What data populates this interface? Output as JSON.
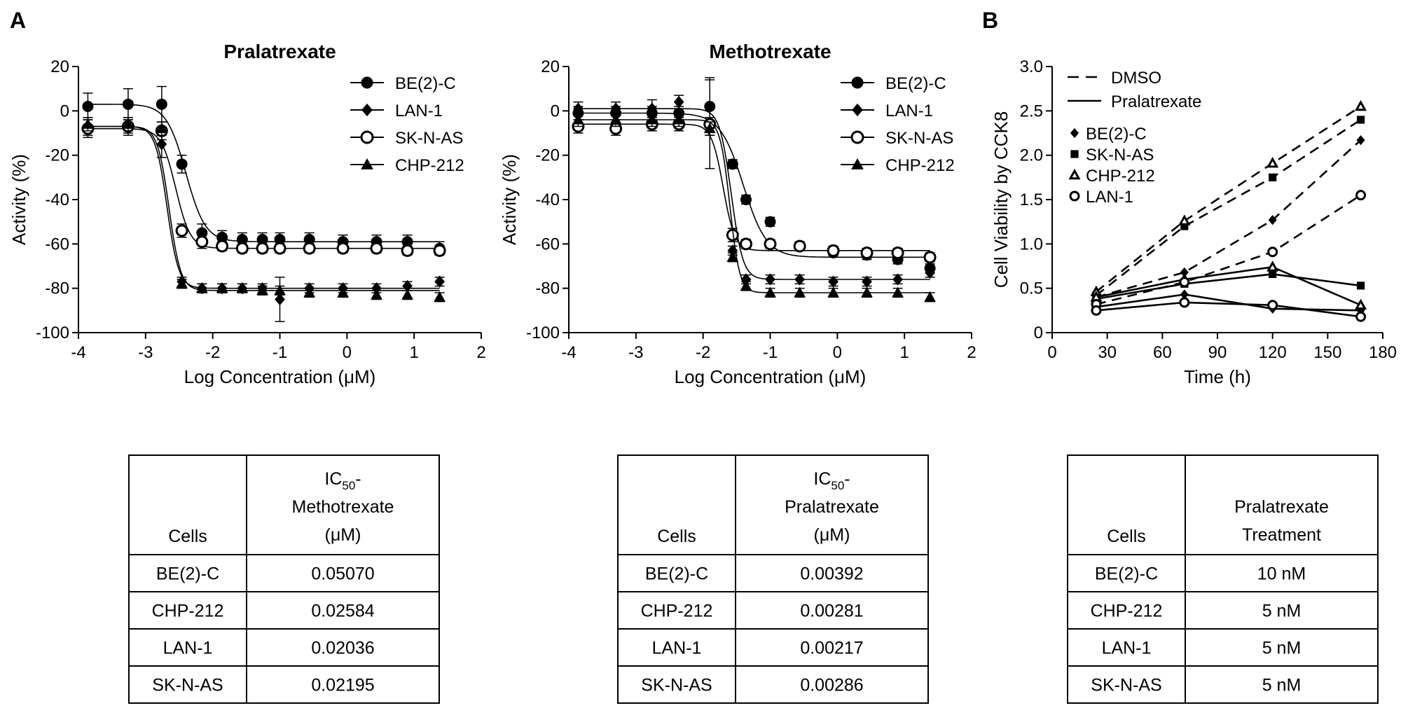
{
  "panels": {
    "a": "A",
    "b": "B"
  },
  "chart_data": [
    {
      "type": "scatter",
      "title": "Pralatrexate",
      "xlabel": "Log Concentration (μM)",
      "ylabel": "Activity (%)",
      "xlim": [
        -4,
        2
      ],
      "ylim": [
        -100,
        20
      ],
      "xticks": [
        -4,
        -3,
        -2,
        -1,
        0,
        1,
        2
      ],
      "yticks": [
        20,
        0,
        -20,
        -40,
        -60,
        -80,
        -100
      ],
      "tick_labels_x": [
        "-4",
        "-3",
        "-2",
        "-1",
        "0",
        "1",
        "2"
      ],
      "tick_labels_y": [
        "20",
        "0",
        "-20",
        "-40",
        "-60",
        "-80",
        "-100"
      ],
      "x": [
        -3.86,
        -3.26,
        -2.76,
        -2.46,
        -2.16,
        -1.86,
        -1.56,
        -1.26,
        -1.0,
        -0.56,
        -0.06,
        0.44,
        0.9,
        1.38
      ],
      "series": [
        {
          "name": "BE(2)-C",
          "marker": "filled-circle",
          "values": [
            2,
            3,
            3,
            -24,
            -55,
            -57,
            -58,
            -58,
            -58,
            -58,
            -59,
            -59,
            -59,
            -62
          ],
          "errors": [
            6,
            7,
            8,
            4,
            4,
            3,
            3,
            3,
            3,
            3,
            3,
            3,
            3,
            3
          ],
          "fit": {
            "top": 3,
            "bottom": -59,
            "logec50": -2.4,
            "hill": 3
          }
        },
        {
          "name": "LAN-1",
          "marker": "filled-diamond",
          "values": [
            -7,
            -7,
            -15,
            -77,
            -80,
            -80,
            -80,
            -80,
            -85,
            -80,
            -80,
            -80,
            -79,
            -77
          ],
          "errors": [
            4,
            4,
            6,
            2,
            2,
            2,
            2,
            2,
            10,
            2,
            2,
            2,
            2,
            2
          ],
          "fit": {
            "top": -7,
            "bottom": -80,
            "logec50": -2.68,
            "hill": 5
          }
        },
        {
          "name": "SK-N-AS",
          "marker": "open-circle",
          "values": [
            -8,
            -7,
            -9,
            -54,
            -59,
            -61,
            -62,
            -62,
            -62,
            -62,
            -62,
            -62,
            -63,
            -63
          ],
          "errors": [
            4,
            3,
            4,
            3,
            3,
            2,
            2,
            2,
            2,
            2,
            2,
            2,
            2,
            2
          ],
          "fit": {
            "top": -8,
            "bottom": -62,
            "logec50": -2.55,
            "hill": 4
          }
        },
        {
          "name": "CHP-212",
          "marker": "filled-triangle",
          "values": [
            -6,
            -6,
            -8,
            -78,
            -80,
            -80,
            -80,
            -81,
            -81,
            -82,
            -82,
            -83,
            -83,
            -84
          ],
          "errors": [
            3,
            3,
            3,
            2,
            2,
            2,
            2,
            2,
            2,
            2,
            2,
            2,
            2,
            2
          ],
          "fit": {
            "top": -7,
            "bottom": -81,
            "logec50": -2.65,
            "hill": 5
          }
        }
      ],
      "legend": "top-right"
    },
    {
      "type": "scatter",
      "title": "Methotrexate",
      "xlabel": "Log Concentration (μM)",
      "ylabel": "Activity (%)",
      "xlim": [
        -4,
        2
      ],
      "ylim": [
        -100,
        20
      ],
      "xticks": [
        -4,
        -3,
        -2,
        -1,
        0,
        1,
        2
      ],
      "yticks": [
        20,
        0,
        -20,
        -40,
        -60,
        -80,
        -100
      ],
      "tick_labels_x": [
        "-4",
        "-3",
        "-2",
        "-1",
        "0",
        "1",
        "2"
      ],
      "tick_labels_y": [
        "20",
        "0",
        "-20",
        "-40",
        "-60",
        "-80",
        "-100"
      ],
      "x": [
        -3.86,
        -3.3,
        -2.76,
        -2.36,
        -1.9,
        -1.56,
        -1.36,
        -1.0,
        -0.56,
        -0.06,
        0.44,
        0.9,
        1.38
      ],
      "series": [
        {
          "name": "BE(2)-C",
          "marker": "filled-circle",
          "values": [
            -1,
            -1,
            -1,
            -1,
            2,
            -24,
            -40,
            -50,
            -61,
            -64,
            -65,
            -67,
            -71
          ],
          "errors": [
            3,
            3,
            3,
            3,
            13,
            2,
            2,
            2,
            2,
            2,
            2,
            2,
            2
          ],
          "fit": {
            "top": -1,
            "bottom": -66,
            "logec50": -1.4,
            "hill": 2.5
          }
        },
        {
          "name": "LAN-1",
          "marker": "filled-diamond",
          "values": [
            1,
            1,
            1,
            4,
            -6,
            -63,
            -76,
            -76,
            -76,
            -77,
            -77,
            -76,
            -73
          ],
          "errors": [
            3,
            3,
            4,
            3,
            3,
            2,
            2,
            2,
            2,
            2,
            2,
            2,
            2
          ],
          "fit": {
            "top": 1,
            "bottom": -76,
            "logec50": -1.58,
            "hill": 5
          }
        },
        {
          "name": "SK-N-AS",
          "marker": "open-circle",
          "values": [
            -7,
            -8,
            -6,
            -6,
            -6,
            -56,
            -60,
            -60,
            -61,
            -63,
            -64,
            -64,
            -66
          ],
          "errors": [
            3,
            3,
            3,
            3,
            20,
            3,
            2,
            2,
            2,
            2,
            2,
            2,
            2
          ],
          "fit": {
            "top": -6,
            "bottom": -63,
            "logec50": -1.7,
            "hill": 5
          }
        },
        {
          "name": "CHP-212",
          "marker": "filled-triangle",
          "values": [
            -4,
            -4,
            -4,
            -4,
            -8,
            -66,
            -79,
            -82,
            -82,
            -82,
            -82,
            -82,
            -84
          ],
          "errors": [
            3,
            3,
            3,
            3,
            3,
            2,
            2,
            2,
            2,
            2,
            2,
            2,
            2
          ],
          "fit": {
            "top": -4,
            "bottom": -82,
            "logec50": -1.6,
            "hill": 6
          }
        }
      ],
      "legend": "top-right"
    },
    {
      "type": "line",
      "xlabel": "Time (h)",
      "ylabel": "Cell Viability by CCK8",
      "xlim": [
        0,
        180
      ],
      "ylim": [
        0,
        3
      ],
      "xticks": [
        0,
        30,
        60,
        90,
        120,
        150,
        180
      ],
      "yticks": [
        0,
        0.5,
        1.0,
        1.5,
        2.0,
        2.5,
        3.0
      ],
      "tick_labels_x": [
        "0",
        "30",
        "60",
        "90",
        "120",
        "150",
        "180"
      ],
      "tick_labels_y": [
        "0",
        "0.5",
        "1.0",
        "1.5",
        "2.0",
        "2.5",
        "3.0"
      ],
      "x": [
        24,
        72,
        120,
        168
      ],
      "line_legend": [
        {
          "label": "DMSO",
          "style": "dashed"
        },
        {
          "label": "Pralatrexate",
          "style": "solid"
        }
      ],
      "series": [
        {
          "name": "BE(2)-C",
          "marker": "filled-diamond",
          "dmso": [
            0.4,
            0.68,
            1.27,
            2.17
          ],
          "pralatrexate": [
            0.29,
            0.43,
            0.27,
            0.25
          ]
        },
        {
          "name": "SK-N-AS",
          "marker": "filled-square",
          "dmso": [
            0.42,
            1.2,
            1.75,
            2.4
          ],
          "pralatrexate": [
            0.38,
            0.55,
            0.66,
            0.53
          ]
        },
        {
          "name": "CHP-212",
          "marker": "open-triangle",
          "dmso": [
            0.46,
            1.26,
            1.91,
            2.55
          ],
          "pralatrexate": [
            0.4,
            0.6,
            0.74,
            0.31
          ]
        },
        {
          "name": "LAN-1",
          "marker": "open-circle",
          "dmso": [
            0.32,
            0.57,
            0.91,
            1.55
          ],
          "pralatrexate": [
            0.25,
            0.34,
            0.31,
            0.18
          ]
        }
      ],
      "legend": "top-left"
    }
  ],
  "tables": [
    {
      "headers": [
        [
          "Cells"
        ],
        [
          "IC",
          "50",
          "-",
          "Methotrexate",
          "(μM)"
        ]
      ],
      "rows": [
        [
          "BE(2)-C",
          "0.05070"
        ],
        [
          "CHP-212",
          "0.02584"
        ],
        [
          "LAN-1",
          "0.02036"
        ],
        [
          "SK-N-AS",
          "0.02195"
        ]
      ]
    },
    {
      "headers": [
        [
          "Cells"
        ],
        [
          "IC",
          "50",
          "-",
          "Pralatrexate",
          "(μM)"
        ]
      ],
      "rows": [
        [
          "BE(2)-C",
          "0.00392"
        ],
        [
          "CHP-212",
          "0.00281"
        ],
        [
          "LAN-1",
          "0.00217"
        ],
        [
          "SK-N-AS",
          "0.00286"
        ]
      ]
    },
    {
      "headers": [
        [
          "Cells"
        ],
        [
          "Pralatrexate",
          "Treatment"
        ]
      ],
      "rows": [
        [
          "BE(2)-C",
          "10 nM"
        ],
        [
          "CHP-212",
          "5 nM"
        ],
        [
          "LAN-1",
          "5 nM"
        ],
        [
          "SK-N-AS",
          "5 nM"
        ]
      ]
    }
  ]
}
